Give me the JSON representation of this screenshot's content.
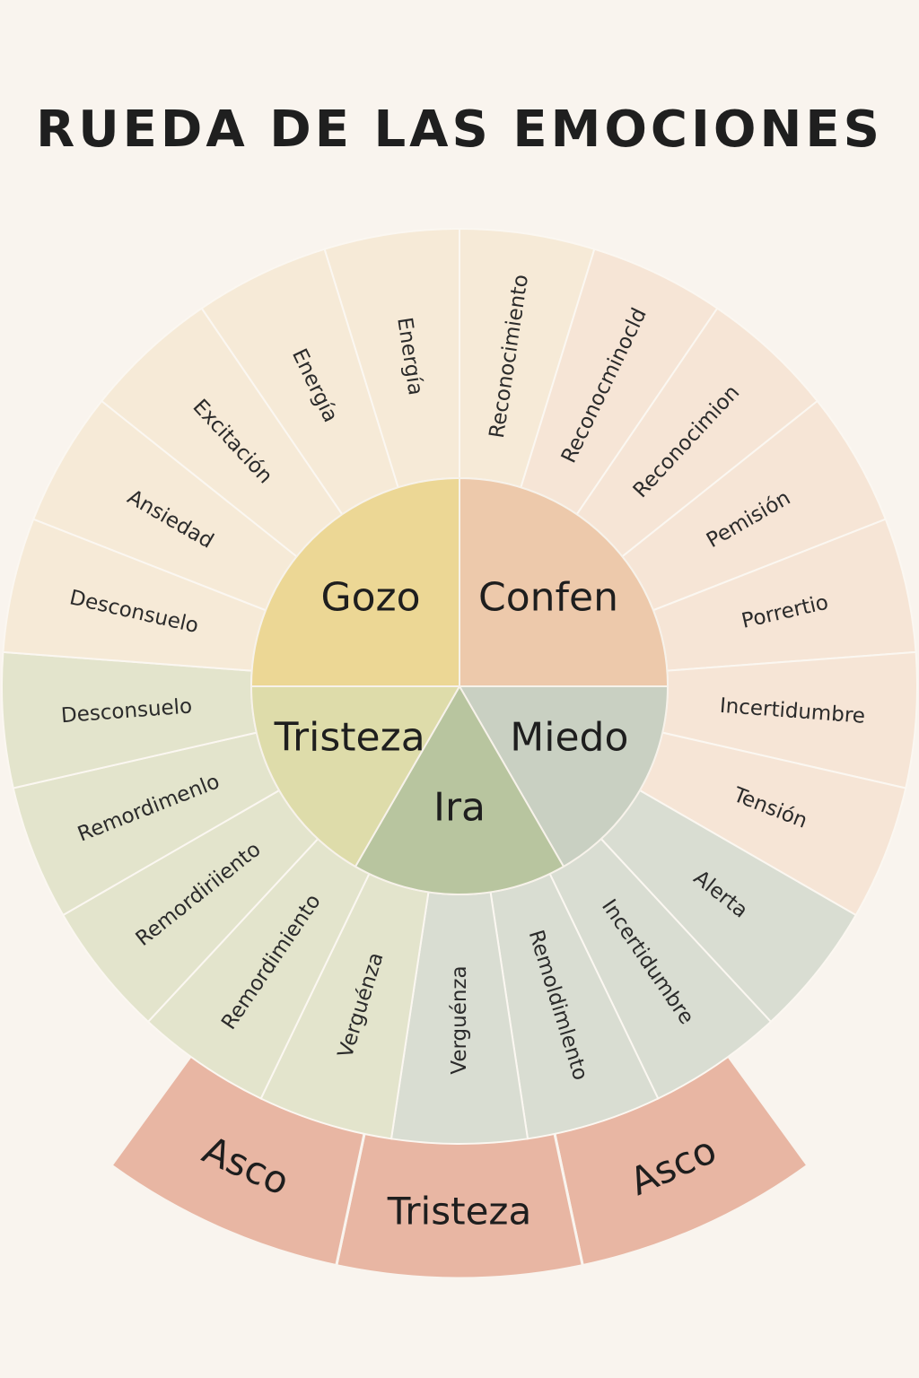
{
  "title": "RUEDA DE LAS EMOCIONES",
  "core": [
    {
      "label": "Gozo",
      "color": "#ecd795"
    },
    {
      "label": "Confen",
      "color": "#edc9ab"
    },
    {
      "label": "Miedo",
      "color": "#c9d0c2"
    },
    {
      "label": "Ira",
      "color": "#b8c59f"
    },
    {
      "label": "Tristeza",
      "color": "#dedcaa"
    }
  ],
  "outer": [
    {
      "label": "Reconocimiento",
      "color": "#f6ead7"
    },
    {
      "label": "Reconocminocld",
      "color": "#f6e5d6"
    },
    {
      "label": "Reconocimion",
      "color": "#f6e5d6"
    },
    {
      "label": "Pemisión",
      "color": "#f6e5d6"
    },
    {
      "label": "Porrertio",
      "color": "#f6e5d6"
    },
    {
      "label": "Incertidumbre",
      "color": "#f6e5d6"
    },
    {
      "label": "Tensión",
      "color": "#f6e5d6"
    },
    {
      "label": "Alerta",
      "color": "#d9ddd2"
    },
    {
      "label": "Incertidumbre",
      "color": "#d9ddd2"
    },
    {
      "label": "Remoldimlento",
      "color": "#d9ddd2"
    },
    {
      "label": "Verguénza",
      "color": "#d9ddd2"
    },
    {
      "label": "Verguénza",
      "color": "#e3e4cc"
    },
    {
      "label": "Remordimiento",
      "color": "#e3e4cc"
    },
    {
      "label": "Remordiriiento",
      "color": "#e3e4cc"
    },
    {
      "label": "Remordimenlo",
      "color": "#e3e4cc"
    },
    {
      "label": "Desconsuelo",
      "color": "#e3e4cc"
    },
    {
      "label": "Desconsuelo",
      "color": "#f6ead7"
    },
    {
      "label": "Ansiedad",
      "color": "#f6ead7"
    },
    {
      "label": "Excitación",
      "color": "#f6ead7"
    },
    {
      "label": "Energía",
      "color": "#f6ead7"
    },
    {
      "label": "Energía",
      "color": "#f6ead7"
    }
  ],
  "band": [
    {
      "label": "Asco",
      "color": "#e8b6a3"
    },
    {
      "label": "Tristeza",
      "color": "#e8b6a3"
    },
    {
      "label": "Asco",
      "color": "#e8b6a3"
    }
  ]
}
